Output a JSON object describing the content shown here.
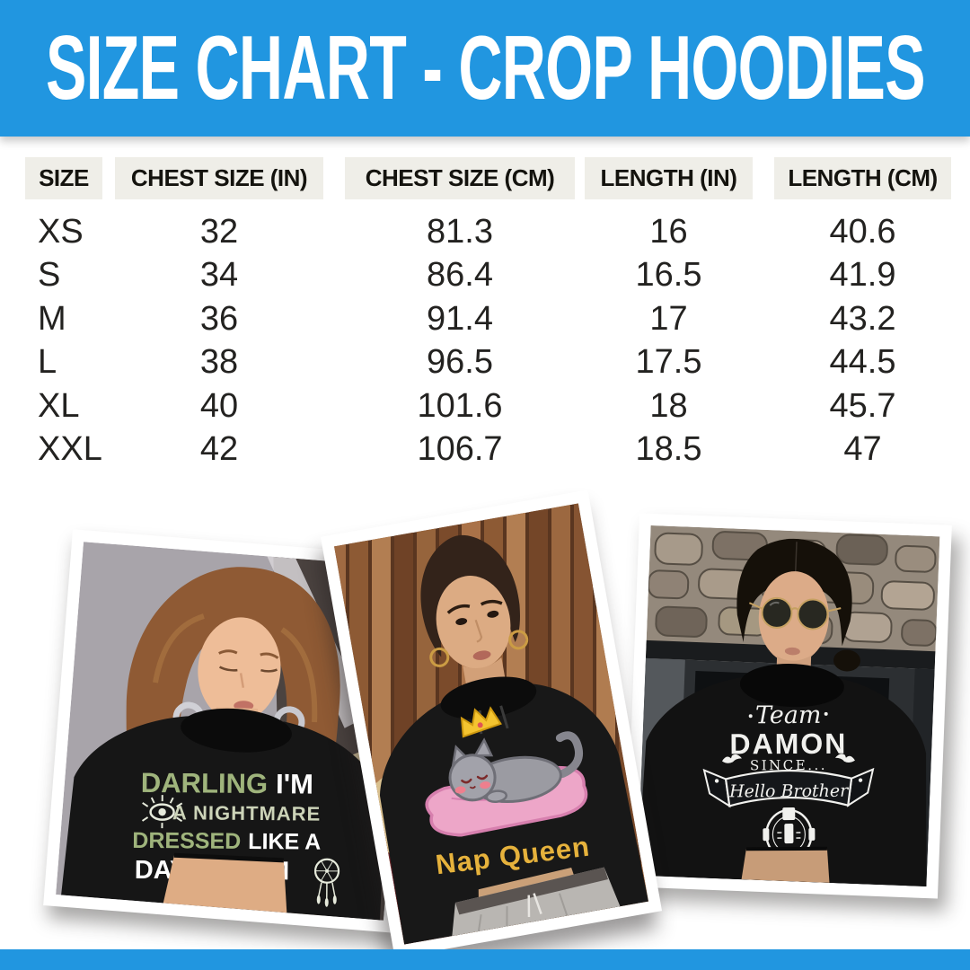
{
  "header": {
    "title": "SIZE CHART - CROP HOODIES"
  },
  "chart_data": {
    "type": "table",
    "title": "SIZE CHART - CROP HOODIES",
    "columns": [
      "SIZE",
      "CHEST SIZE (IN)",
      "CHEST SIZE (CM)",
      "LENGTH (IN)",
      "LENGTH (CM)"
    ],
    "rows": [
      [
        "XS",
        "32",
        "81.3",
        "16",
        "40.6"
      ],
      [
        "S",
        "34",
        "86.4",
        "16.5",
        "41.9"
      ],
      [
        "M",
        "36",
        "91.4",
        "17",
        "43.2"
      ],
      [
        "L",
        "38",
        "96.5",
        "17.5",
        "44.5"
      ],
      [
        "XL",
        "40",
        "101.6",
        "18",
        "45.7"
      ],
      [
        "XXL",
        "42",
        "106.7",
        "18.5",
        "47"
      ]
    ]
  },
  "colors": {
    "accent_blue": "#2196e0",
    "header_chip_bg": "#efeee8",
    "table_text": "#232220",
    "design_green": "#9fb47c",
    "design_sage": "#ccd3b8",
    "design_white": "#ffffff",
    "nap_queen_yellow": "#e6b23c",
    "damon_white": "#f1f1ee"
  },
  "photos": [
    {
      "label": "day-dream-crop-hoodie",
      "design": {
        "word1": "DARLING",
        "word2": "I'M",
        "line2": "A NIGHTMARE",
        "word3": "DRESSED",
        "word4": "LIKE A",
        "line4": "DAY DREAM"
      }
    },
    {
      "label": "nap-queen-crop-hoodie",
      "design": {
        "caption": "Nap Queen"
      }
    },
    {
      "label": "team-damon-crop-hoodie",
      "design": {
        "team": "Team",
        "name": "DAMON",
        "since": "SINCE...",
        "banner": "Hello Brother"
      }
    }
  ]
}
